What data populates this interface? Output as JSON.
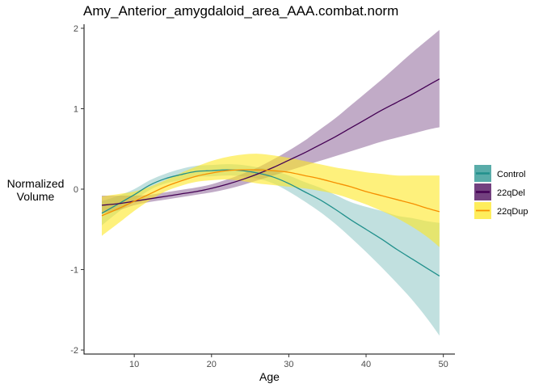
{
  "chart_data": {
    "type": "line",
    "title": "Amy_Anterior_amygdaloid_area_AAA.combat.norm",
    "xlabel": "Age",
    "ylabel": [
      "Normalized",
      "Volume"
    ],
    "xlim": [
      3.5,
      51.5
    ],
    "ylim": [
      -2.05,
      2.05
    ],
    "x_ticks": [
      10,
      20,
      30,
      40,
      50
    ],
    "y_ticks": [
      -2,
      -1,
      0,
      1,
      2
    ],
    "grid": false,
    "legend_position": "right",
    "x": [
      5.8,
      8,
      10,
      12,
      14,
      16,
      18,
      20,
      22,
      24,
      26,
      28,
      30,
      32,
      34,
      36,
      38,
      40,
      42,
      44,
      46,
      48,
      49.5
    ],
    "series": [
      {
        "name": "Control",
        "color": "#21908C",
        "fill": "rgba(33,144,140,0.28)",
        "values": [
          -0.3,
          -0.18,
          -0.07,
          0.05,
          0.13,
          0.18,
          0.22,
          0.23,
          0.24,
          0.23,
          0.2,
          0.15,
          0.07,
          -0.03,
          -0.13,
          -0.25,
          -0.38,
          -0.5,
          -0.62,
          -0.75,
          -0.87,
          -0.99,
          -1.08
        ],
        "lower": [
          -0.45,
          -0.28,
          -0.14,
          -0.01,
          0.07,
          0.11,
          0.15,
          0.16,
          0.17,
          0.16,
          0.13,
          0.07,
          -0.03,
          -0.15,
          -0.28,
          -0.43,
          -0.6,
          -0.78,
          -0.97,
          -1.17,
          -1.38,
          -1.62,
          -1.82
        ],
        "upper": [
          -0.15,
          -0.08,
          0.0,
          0.11,
          0.19,
          0.25,
          0.29,
          0.3,
          0.31,
          0.3,
          0.27,
          0.23,
          0.17,
          0.09,
          0.02,
          -0.07,
          -0.16,
          -0.22,
          -0.27,
          -0.33,
          -0.36,
          -0.4,
          -0.42
        ]
      },
      {
        "name": "22qDel",
        "color": "#440154",
        "fill": "rgba(68,1,84,0.33)",
        "values": [
          -0.2,
          -0.18,
          -0.15,
          -0.12,
          -0.09,
          -0.06,
          -0.03,
          0.01,
          0.06,
          0.12,
          0.19,
          0.27,
          0.36,
          0.45,
          0.55,
          0.65,
          0.76,
          0.87,
          0.98,
          1.08,
          1.18,
          1.29,
          1.37
        ],
        "lower": [
          -0.3,
          -0.26,
          -0.2,
          -0.16,
          -0.13,
          -0.1,
          -0.07,
          -0.04,
          0.0,
          0.05,
          0.11,
          0.17,
          0.23,
          0.29,
          0.35,
          0.41,
          0.47,
          0.53,
          0.59,
          0.64,
          0.69,
          0.74,
          0.77
        ],
        "upper": [
          -0.08,
          -0.08,
          -0.08,
          -0.07,
          -0.04,
          -0.01,
          0.02,
          0.06,
          0.12,
          0.19,
          0.27,
          0.37,
          0.48,
          0.6,
          0.74,
          0.88,
          1.04,
          1.2,
          1.36,
          1.53,
          1.7,
          1.86,
          1.98
        ]
      },
      {
        "name": "22qDup",
        "color": "#F68F00",
        "fill": "rgba(253,231,37,0.60)",
        "values": [
          -0.33,
          -0.24,
          -0.15,
          -0.06,
          0.03,
          0.1,
          0.16,
          0.2,
          0.23,
          0.24,
          0.24,
          0.23,
          0.21,
          0.17,
          0.13,
          0.08,
          0.03,
          -0.03,
          -0.08,
          -0.13,
          -0.18,
          -0.24,
          -0.28
        ],
        "lower": [
          -0.58,
          -0.42,
          -0.27,
          -0.14,
          -0.03,
          0.04,
          0.09,
          0.11,
          0.12,
          0.1,
          0.07,
          0.05,
          0.03,
          0.01,
          -0.02,
          -0.06,
          -0.12,
          -0.19,
          -0.27,
          -0.36,
          -0.47,
          -0.6,
          -0.72
        ],
        "upper": [
          -0.09,
          -0.06,
          -0.03,
          0.03,
          0.11,
          0.2,
          0.28,
          0.35,
          0.4,
          0.43,
          0.44,
          0.42,
          0.39,
          0.35,
          0.31,
          0.27,
          0.24,
          0.21,
          0.19,
          0.17,
          0.17,
          0.17,
          0.17
        ]
      }
    ]
  }
}
